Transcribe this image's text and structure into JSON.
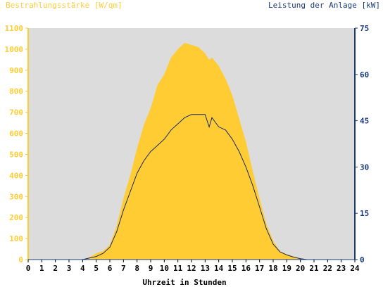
{
  "chart_data": {
    "type": "area",
    "left_axis_title": "Bestrahlungsstärke [W/qm]",
    "right_axis_title": "Leistung der Anlage [kW]",
    "xlabel": "Uhrzeit in Stunden",
    "x_ticks": [
      "0",
      "1",
      "2",
      "3",
      "4",
      "5",
      "6",
      "7",
      "8",
      "9",
      "10",
      "11",
      "12",
      "13",
      "14",
      "15",
      "16",
      "17",
      "18",
      "19",
      "20",
      "21",
      "22",
      "23",
      "24"
    ],
    "left_ticks": [
      "0",
      "100",
      "200",
      "300",
      "400",
      "500",
      "600",
      "700",
      "800",
      "900",
      "1000",
      "1100"
    ],
    "right_ticks": [
      "0",
      "15",
      "30",
      "45",
      "60",
      "75"
    ],
    "xlim": [
      0,
      24
    ],
    "ylim_left": [
      0,
      1100
    ],
    "ylim_right": [
      0,
      75
    ],
    "colors": {
      "irradiance": "#ffcc33",
      "power": "#1a2a66",
      "left_axis": "#ffcc33",
      "right_axis": "#1a3a7a",
      "plot_background": "#dcdcdc"
    },
    "series": [
      {
        "type": "area",
        "axis": "left",
        "x": [
          0,
          4,
          4.5,
          5,
          5.5,
          6,
          6.5,
          7,
          7.5,
          8,
          8.5,
          9,
          9.5,
          10,
          10.5,
          11,
          11.5,
          12,
          12.5,
          13,
          13.3,
          13.5,
          14,
          14.5,
          15,
          15.5,
          16,
          16.5,
          17,
          17.5,
          18,
          18.5,
          19,
          19.5,
          20,
          20.5,
          24
        ],
        "values": [
          0,
          0,
          10,
          30,
          40,
          70,
          160,
          290,
          400,
          530,
          640,
          720,
          830,
          880,
          960,
          1000,
          1030,
          1020,
          1010,
          980,
          950,
          960,
          920,
          860,
          780,
          670,
          560,
          420,
          290,
          170,
          90,
          40,
          25,
          15,
          5,
          0,
          0
        ]
      },
      {
        "type": "line",
        "axis": "right",
        "x": [
          0,
          4,
          4.5,
          5,
          5.5,
          6,
          6.5,
          7,
          7.5,
          8,
          8.5,
          9,
          9.5,
          10,
          10.5,
          11,
          11.5,
          12,
          12.5,
          13,
          13.3,
          13.5,
          14,
          14.5,
          15,
          15.5,
          16,
          16.5,
          17,
          17.5,
          18,
          18.5,
          19,
          19.5,
          20,
          20.5,
          24
        ],
        "values": [
          0,
          0,
          0.5,
          1,
          2,
          4,
          9,
          16,
          22,
          28,
          32,
          35,
          37,
          39,
          42,
          44,
          46,
          47,
          47,
          47,
          43,
          46,
          43,
          42,
          39,
          35,
          30,
          24,
          17,
          10,
          5,
          2.5,
          1.5,
          0.8,
          0.3,
          0,
          0
        ]
      }
    ]
  }
}
